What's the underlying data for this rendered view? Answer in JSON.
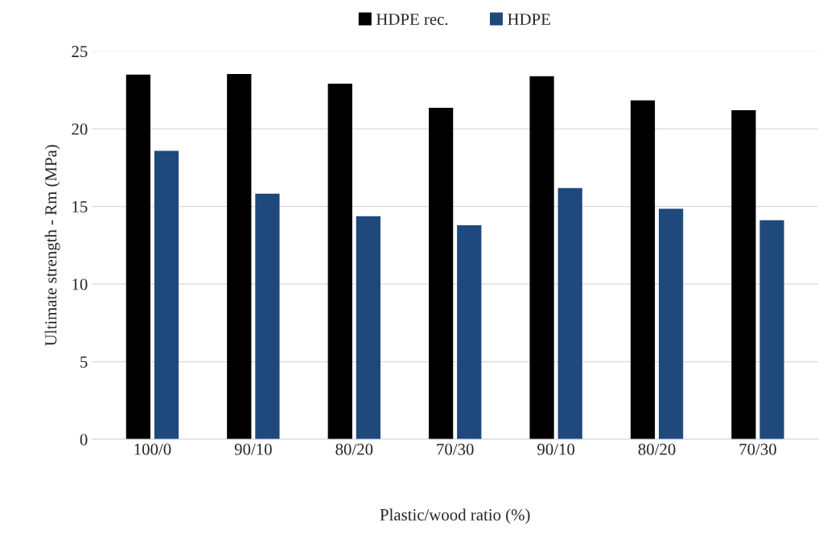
{
  "chart_data": {
    "type": "bar",
    "categories": [
      "100/0",
      "90/10",
      "80/20",
      "70/30",
      "90/10",
      "80/20",
      "70/30"
    ],
    "xlabel": "Plastic/wood ratio (%)",
    "ylabel": "Ultimate strength - Rm (MPa)",
    "series": [
      {
        "name": "HDPE rec.",
        "color": "#000000",
        "values": [
          23.45,
          23.5,
          22.87,
          21.32,
          23.35,
          21.8,
          21.16
        ]
      },
      {
        "name": "HDPE",
        "color": "#1f497d",
        "values": [
          18.55,
          15.78,
          14.34,
          13.75,
          16.15,
          14.82,
          14.07
        ]
      }
    ],
    "ylim": [
      0,
      25
    ],
    "yticks": [
      0,
      5,
      10,
      15,
      20,
      25
    ],
    "grid": "y",
    "legend": "top"
  }
}
